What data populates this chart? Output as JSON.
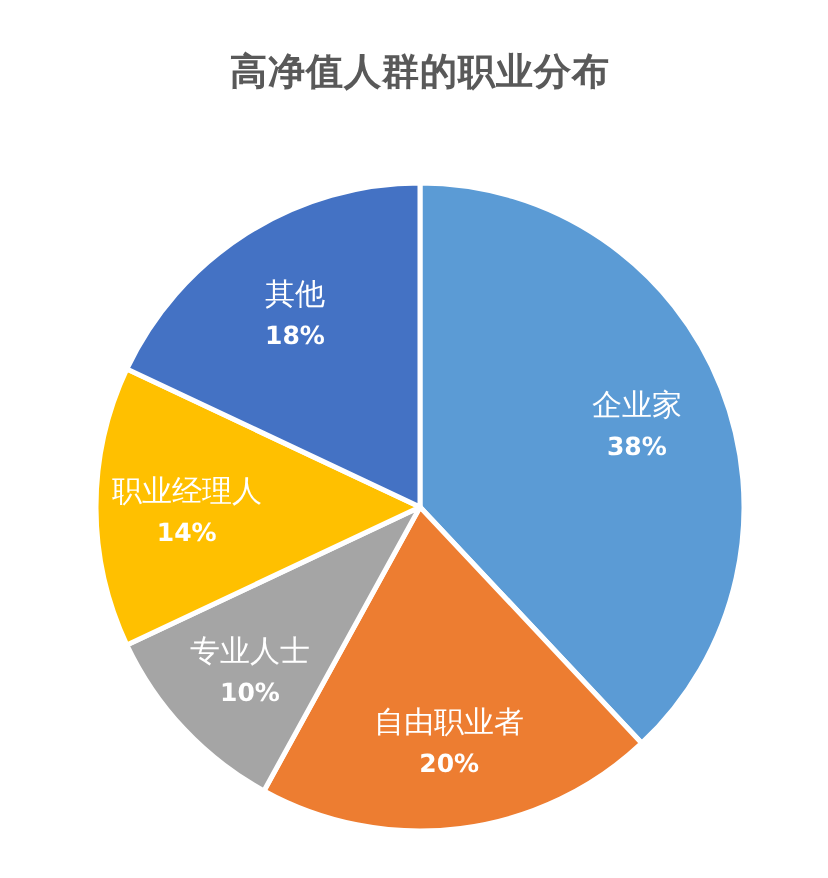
{
  "chart_data": {
    "type": "pie",
    "title": "高净值人群的职业分布",
    "categories": [
      "企业家",
      "自由职业者",
      "专业人士",
      "职业经理人",
      "其他"
    ],
    "values": [
      38,
      20,
      10,
      14,
      18
    ],
    "colors": [
      "#5b9bd5",
      "#ed7d31",
      "#a5a5a5",
      "#ffc000",
      "#4472c4"
    ],
    "value_labels": [
      "38%",
      "20%",
      "10%",
      "14%",
      "18%"
    ]
  }
}
